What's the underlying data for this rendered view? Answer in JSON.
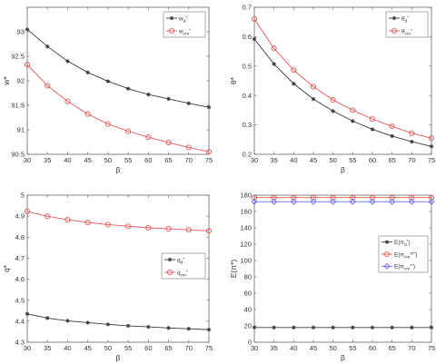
{
  "chart_data": [
    {
      "type": "line",
      "title": "",
      "xlabel": "β",
      "ylabel": "w*",
      "xlim": [
        30,
        75
      ],
      "ylim": [
        90.5,
        93.5
      ],
      "xticks": [
        "30",
        "35",
        "40",
        "45",
        "50",
        "55",
        "60",
        "65",
        "70",
        "75"
      ],
      "yticks": [
        "90.5",
        "91",
        "91.5",
        "92",
        "92.5",
        "93"
      ],
      "x": [
        30,
        35,
        40,
        45,
        50,
        55,
        60,
        65,
        70,
        75
      ],
      "legend_position": "top-right",
      "series": [
        {
          "name": "w_d^*",
          "label_main": "w",
          "label_sub": "d",
          "label_sup": "*",
          "color": "#3a3a3a",
          "marker": "asterisk",
          "values": [
            93.05,
            92.7,
            92.4,
            92.17,
            91.99,
            91.84,
            91.72,
            91.63,
            91.54,
            91.46
          ]
        },
        {
          "name": "w_cm^*",
          "label_main": "w",
          "label_sub": "cm",
          "label_sup": "*",
          "color": "#e05a5a",
          "marker": "circle",
          "values": [
            92.33,
            91.9,
            91.58,
            91.32,
            91.12,
            90.97,
            90.85,
            90.74,
            90.64,
            90.55
          ]
        }
      ]
    },
    {
      "type": "line",
      "title": "",
      "xlabel": "β",
      "ylabel": "θ*",
      "xlim": [
        30,
        75
      ],
      "ylim": [
        0.2,
        0.7
      ],
      "xticks": [
        "30",
        "35",
        "40",
        "45",
        "50",
        "55",
        "60",
        "65",
        "70",
        "75"
      ],
      "yticks": [
        "0.2",
        "0.3",
        "0.4",
        "0.5",
        "0.6",
        "0.7"
      ],
      "x": [
        30,
        35,
        40,
        45,
        50,
        55,
        60,
        65,
        70,
        75
      ],
      "legend_position": "top-right",
      "series": [
        {
          "name": "θ_d^*",
          "label_main": "θ",
          "label_sub": "d",
          "label_sup": "*",
          "color": "#3a3a3a",
          "marker": "asterisk",
          "values": [
            0.592,
            0.507,
            0.44,
            0.388,
            0.347,
            0.313,
            0.285,
            0.262,
            0.243,
            0.227
          ]
        },
        {
          "name": "θ_cm^*",
          "label_main": "θ",
          "label_sub": "cm",
          "label_sup": "*",
          "color": "#e05a5a",
          "marker": "circle",
          "values": [
            0.66,
            0.56,
            0.486,
            0.43,
            0.385,
            0.35,
            0.32,
            0.295,
            0.272,
            0.255
          ]
        }
      ]
    },
    {
      "type": "line",
      "title": "",
      "xlabel": "β",
      "ylabel": "q*",
      "xlim": [
        30,
        75
      ],
      "ylim": [
        4.3,
        5.0
      ],
      "xticks": [
        "30",
        "35",
        "40",
        "45",
        "50",
        "55",
        "60",
        "65",
        "70",
        "75"
      ],
      "yticks": [
        "4.3",
        "4.4",
        "4.5",
        "4.6",
        "4.7",
        "4.8",
        "4.9",
        "5"
      ],
      "x": [
        30,
        35,
        40,
        45,
        50,
        55,
        60,
        65,
        70,
        75
      ],
      "legend_position": "center-right",
      "series": [
        {
          "name": "q_d^*",
          "label_main": "q",
          "label_sub": "d",
          "label_sup": "*",
          "color": "#3a3a3a",
          "marker": "asterisk",
          "values": [
            4.435,
            4.415,
            4.402,
            4.393,
            4.385,
            4.378,
            4.373,
            4.368,
            4.364,
            4.36
          ]
        },
        {
          "name": "q_cm^*",
          "label_main": "q",
          "label_sub": "cm",
          "label_sup": "*",
          "color": "#e05a5a",
          "marker": "circle",
          "values": [
            4.922,
            4.9,
            4.883,
            4.87,
            4.86,
            4.852,
            4.845,
            4.84,
            4.835,
            4.83
          ]
        }
      ]
    },
    {
      "type": "line",
      "title": "",
      "xlabel": "β",
      "ylabel": "E(π*)",
      "xlim": [
        30,
        75
      ],
      "ylim": [
        0,
        180
      ],
      "xticks": [
        "30",
        "35",
        "40",
        "45",
        "50",
        "55",
        "60",
        "65",
        "70",
        "75"
      ],
      "yticks": [
        "0",
        "20",
        "40",
        "60",
        "80",
        "100",
        "120",
        "140",
        "160",
        "180"
      ],
      "x": [
        30,
        35,
        40,
        45,
        50,
        55,
        60,
        65,
        70,
        75
      ],
      "legend_position": "center-right",
      "series": [
        {
          "name": "E(π_d^*)",
          "label_main": "E(π",
          "label_sub": "d",
          "label_sup": "*",
          "label_close": ")",
          "color": "#3a3a3a",
          "marker": "asterisk",
          "values": [
            18,
            18,
            18,
            18,
            18,
            18,
            18,
            18,
            18,
            18
          ]
        },
        {
          "name": "E(π_cm^m*)",
          "label_main": "E(π",
          "label_sub": "cm",
          "label_sup": "m*",
          "label_close": ")",
          "color": "#e05a5a",
          "marker": "circle",
          "values": [
            177,
            177,
            177,
            177,
            177,
            177,
            177,
            177,
            177,
            177
          ]
        },
        {
          "name": "E(π_cm^r*)",
          "label_main": "E(π",
          "label_sub": "cm",
          "label_sup": "r*",
          "label_close": ")",
          "color": "#6c6cf0",
          "marker": "diamond",
          "values": [
            172,
            172,
            172,
            172,
            172,
            172,
            172,
            172,
            172,
            172
          ]
        }
      ]
    }
  ]
}
